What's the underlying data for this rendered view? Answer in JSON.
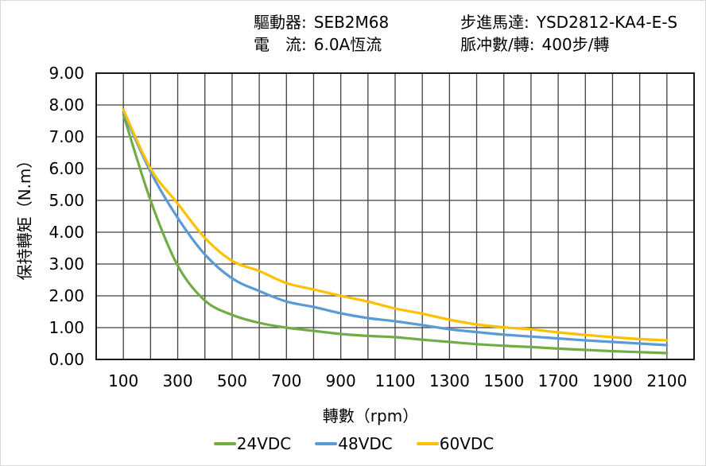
{
  "header": {
    "driver_label": "驅動器:",
    "driver_value": "SEB2M68",
    "current_label": "電　流:",
    "current_value": "6.0A恆流",
    "motor_label": "步進馬達:",
    "motor_value": "YSD2812-KA4-E-S",
    "pulses_label": "脈冲數/轉:",
    "pulses_value": "400步/轉"
  },
  "chart_data": {
    "type": "line",
    "title": "",
    "xlabel": "轉數（rpm）",
    "ylabel": "保持轉矩（N.m）",
    "xlim": [
      0,
      2200
    ],
    "ylim": [
      0,
      9
    ],
    "x_grid_step": 100,
    "y_grid_step": 1,
    "grid": true,
    "legend_position": "bottom",
    "xticks": [
      100,
      300,
      500,
      700,
      900,
      1100,
      1300,
      1500,
      1700,
      1900,
      2100
    ],
    "yticks": [
      "0.00",
      "1.00",
      "2.00",
      "3.00",
      "4.00",
      "5.00",
      "6.00",
      "7.00",
      "8.00",
      "9.00"
    ],
    "x": [
      100,
      200,
      300,
      400,
      500,
      600,
      700,
      800,
      900,
      1000,
      1100,
      1200,
      1300,
      1400,
      1500,
      1600,
      1700,
      1800,
      1900,
      2000,
      2100
    ],
    "series": [
      {
        "name": "24VDC",
        "color": "#70AD47",
        "values": [
          7.7,
          5.0,
          2.95,
          1.85,
          1.4,
          1.15,
          1.0,
          0.9,
          0.8,
          0.74,
          0.7,
          0.62,
          0.55,
          0.48,
          0.43,
          0.39,
          0.34,
          0.3,
          0.26,
          0.23,
          0.2
        ]
      },
      {
        "name": "48VDC",
        "color": "#5B9BD5",
        "values": [
          7.78,
          5.9,
          4.45,
          3.3,
          2.55,
          2.15,
          1.82,
          1.65,
          1.45,
          1.3,
          1.2,
          1.08,
          0.95,
          0.86,
          0.78,
          0.72,
          0.66,
          0.6,
          0.55,
          0.5,
          0.45
        ]
      },
      {
        "name": "60VDC",
        "color": "#FFC000",
        "values": [
          7.85,
          6.0,
          4.9,
          3.82,
          3.1,
          2.78,
          2.4,
          2.2,
          2.0,
          1.82,
          1.6,
          1.44,
          1.25,
          1.1,
          1.01,
          0.95,
          0.85,
          0.77,
          0.7,
          0.64,
          0.6
        ]
      }
    ]
  },
  "colors": {
    "grid": "#404040",
    "frame": "#1a1a1a",
    "text": "#000000",
    "background": "#ffffff"
  }
}
